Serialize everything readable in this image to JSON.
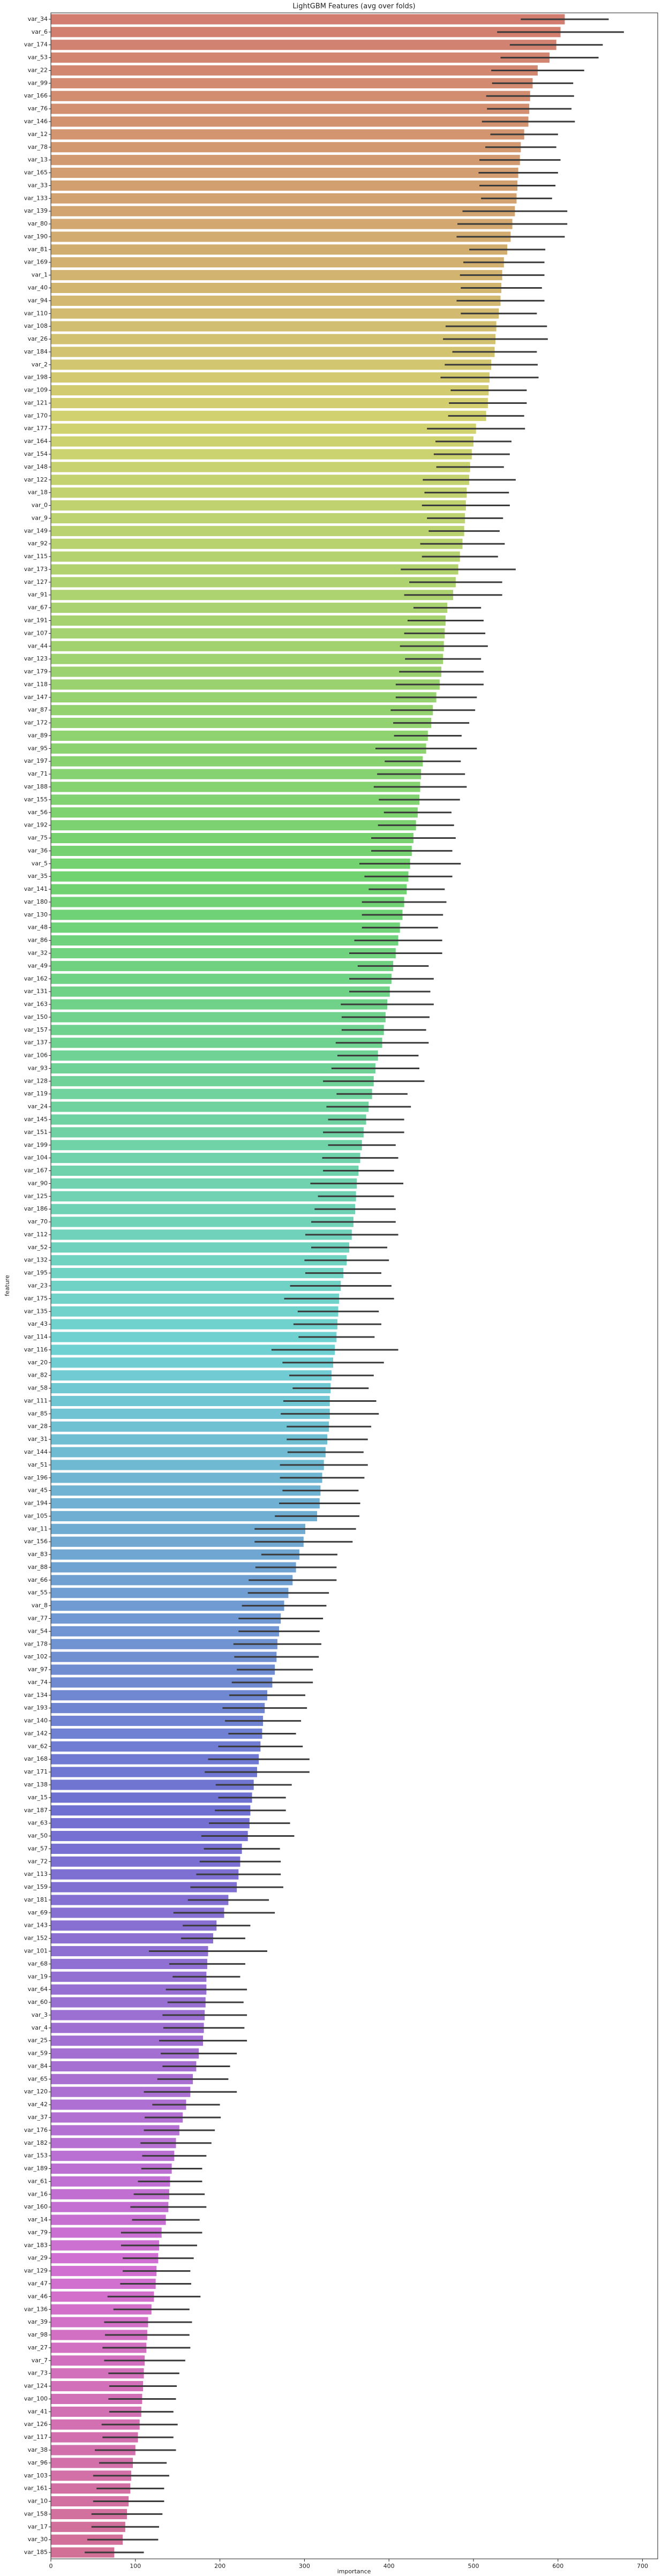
{
  "chart_data": {
    "type": "barh",
    "title": "LightGBM Features (avg over folds)",
    "xlabel": "importance",
    "ylabel": "feature",
    "palette": "husl",
    "error_color": "#3a3a3a",
    "xlim": [
      0,
      718
    ],
    "xticks": [
      0,
      100,
      200,
      300,
      400,
      500,
      600,
      700
    ],
    "categories": [
      "var_34",
      "var_6",
      "var_174",
      "var_53",
      "var_22",
      "var_99",
      "var_166",
      "var_76",
      "var_146",
      "var_12",
      "var_78",
      "var_13",
      "var_165",
      "var_33",
      "var_133",
      "var_139",
      "var_80",
      "var_190",
      "var_81",
      "var_169",
      "var_1",
      "var_40",
      "var_94",
      "var_110",
      "var_108",
      "var_26",
      "var_184",
      "var_2",
      "var_198",
      "var_109",
      "var_121",
      "var_170",
      "var_177",
      "var_164",
      "var_154",
      "var_148",
      "var_122",
      "var_18",
      "var_0",
      "var_9",
      "var_149",
      "var_92",
      "var_115",
      "var_173",
      "var_127",
      "var_91",
      "var_67",
      "var_191",
      "var_107",
      "var_44",
      "var_123",
      "var_179",
      "var_118",
      "var_147",
      "var_87",
      "var_172",
      "var_89",
      "var_95",
      "var_197",
      "var_71",
      "var_188",
      "var_155",
      "var_56",
      "var_192",
      "var_75",
      "var_36",
      "var_5",
      "var_35",
      "var_141",
      "var_180",
      "var_130",
      "var_48",
      "var_86",
      "var_32",
      "var_49",
      "var_162",
      "var_131",
      "var_163",
      "var_150",
      "var_157",
      "var_137",
      "var_106",
      "var_93",
      "var_128",
      "var_119",
      "var_24",
      "var_145",
      "var_151",
      "var_199",
      "var_104",
      "var_167",
      "var_90",
      "var_125",
      "var_186",
      "var_70",
      "var_112",
      "var_52",
      "var_132",
      "var_195",
      "var_23",
      "var_175",
      "var_135",
      "var_43",
      "var_114",
      "var_116",
      "var_20",
      "var_82",
      "var_58",
      "var_111",
      "var_85",
      "var_28",
      "var_31",
      "var_144",
      "var_51",
      "var_196",
      "var_45",
      "var_194",
      "var_105",
      "var_11",
      "var_156",
      "var_83",
      "var_88",
      "var_66",
      "var_55",
      "var_8",
      "var_77",
      "var_54",
      "var_178",
      "var_102",
      "var_97",
      "var_74",
      "var_134",
      "var_193",
      "var_140",
      "var_142",
      "var_62",
      "var_168",
      "var_171",
      "var_138",
      "var_15",
      "var_187",
      "var_63",
      "var_50",
      "var_57",
      "var_72",
      "var_113",
      "var_159",
      "var_181",
      "var_69",
      "var_143",
      "var_152",
      "var_101",
      "var_68",
      "var_19",
      "var_64",
      "var_60",
      "var_3",
      "var_4",
      "var_25",
      "var_59",
      "var_84",
      "var_65",
      "var_120",
      "var_42",
      "var_37",
      "var_176",
      "var_182",
      "var_153",
      "var_189",
      "var_61",
      "var_16",
      "var_160",
      "var_14",
      "var_79",
      "var_183",
      "var_29",
      "var_129",
      "var_47",
      "var_46",
      "var_136",
      "var_39",
      "var_98",
      "var_27",
      "var_7",
      "var_73",
      "var_124",
      "var_100",
      "var_41",
      "var_126",
      "var_117",
      "var_38",
      "var_96",
      "var_103",
      "var_161",
      "var_10",
      "var_158",
      "var_17",
      "var_30",
      "var_185"
    ],
    "values": [
      608,
      603,
      598,
      590,
      576,
      570,
      567,
      566,
      565,
      560,
      556,
      555,
      553,
      552,
      551,
      549,
      546,
      544,
      540,
      536,
      534,
      533,
      532,
      530,
      527,
      526,
      525,
      521,
      519,
      518,
      517,
      515,
      503,
      500,
      498,
      496,
      495,
      492,
      491,
      490,
      489,
      487,
      484,
      482,
      479,
      476,
      469,
      467,
      466,
      465,
      464,
      462,
      460,
      456,
      452,
      450,
      446,
      444,
      440,
      438,
      437,
      436,
      434,
      432,
      429,
      427,
      425,
      423,
      421,
      418,
      416,
      413,
      411,
      408,
      405,
      403,
      401,
      398,
      396,
      394,
      392,
      387,
      384,
      382,
      380,
      376,
      373,
      370,
      368,
      366,
      364,
      362,
      361,
      360,
      358,
      356,
      353,
      350,
      346,
      343,
      341,
      340,
      339,
      338,
      336,
      334,
      332,
      331,
      330,
      330,
      329,
      327,
      325,
      323,
      321,
      319,
      318,
      315,
      301,
      299,
      294,
      290,
      286,
      281,
      276,
      272,
      270,
      268,
      267,
      265,
      262,
      256,
      253,
      251,
      250,
      248,
      246,
      244,
      240,
      238,
      236,
      235,
      233,
      226,
      224,
      222,
      220,
      210,
      205,
      196,
      192,
      186,
      185,
      184,
      184,
      183,
      182,
      181,
      180,
      175,
      172,
      168,
      165,
      160,
      156,
      152,
      148,
      146,
      143,
      141,
      140,
      139,
      136,
      131,
      128,
      127,
      125,
      124,
      122,
      119,
      115,
      114,
      113,
      111,
      110,
      109,
      108,
      107,
      105,
      103,
      100,
      97,
      95,
      94,
      92,
      90,
      88,
      85,
      75
    ],
    "errors": [
      52,
      75,
      55,
      58,
      55,
      48,
      52,
      50,
      55,
      40,
      42,
      48,
      47,
      45,
      42,
      62,
      65,
      64,
      45,
      48,
      50,
      48,
      52,
      45,
      60,
      62,
      50,
      55,
      58,
      45,
      46,
      45,
      58,
      45,
      45,
      40,
      55,
      50,
      52,
      45,
      42,
      50,
      45,
      68,
      55,
      58,
      40,
      45,
      48,
      52,
      45,
      50,
      52,
      48,
      50,
      45,
      40,
      60,
      45,
      52,
      55,
      48,
      40,
      45,
      50,
      48,
      60,
      52,
      45,
      50,
      48,
      45,
      52,
      55,
      42,
      50,
      48,
      55,
      52,
      50,
      55,
      48,
      52,
      60,
      42,
      50,
      45,
      48,
      40,
      45,
      42,
      55,
      45,
      48,
      50,
      55,
      45,
      50,
      45,
      60,
      65,
      48,
      52,
      45,
      75,
      60,
      50,
      45,
      55,
      58,
      50,
      48,
      45,
      52,
      50,
      45,
      48,
      50,
      60,
      58,
      45,
      48,
      52,
      48,
      50,
      50,
      48,
      52,
      50,
      45,
      48,
      45,
      50,
      45,
      40,
      50,
      60,
      62,
      45,
      40,
      42,
      48,
      55,
      45,
      48,
      50,
      55,
      48,
      60,
      40,
      38,
      70,
      45,
      40,
      48,
      45,
      50,
      48,
      52,
      45,
      40,
      42,
      55,
      40,
      45,
      42,
      42,
      38,
      36,
      38,
      42,
      45,
      40,
      48,
      45,
      42,
      40,
      42,
      55,
      45,
      52,
      50,
      52,
      48,
      42,
      40,
      40,
      38,
      45,
      42,
      48,
      40,
      45,
      40,
      42,
      42,
      40,
      42,
      35
    ]
  }
}
